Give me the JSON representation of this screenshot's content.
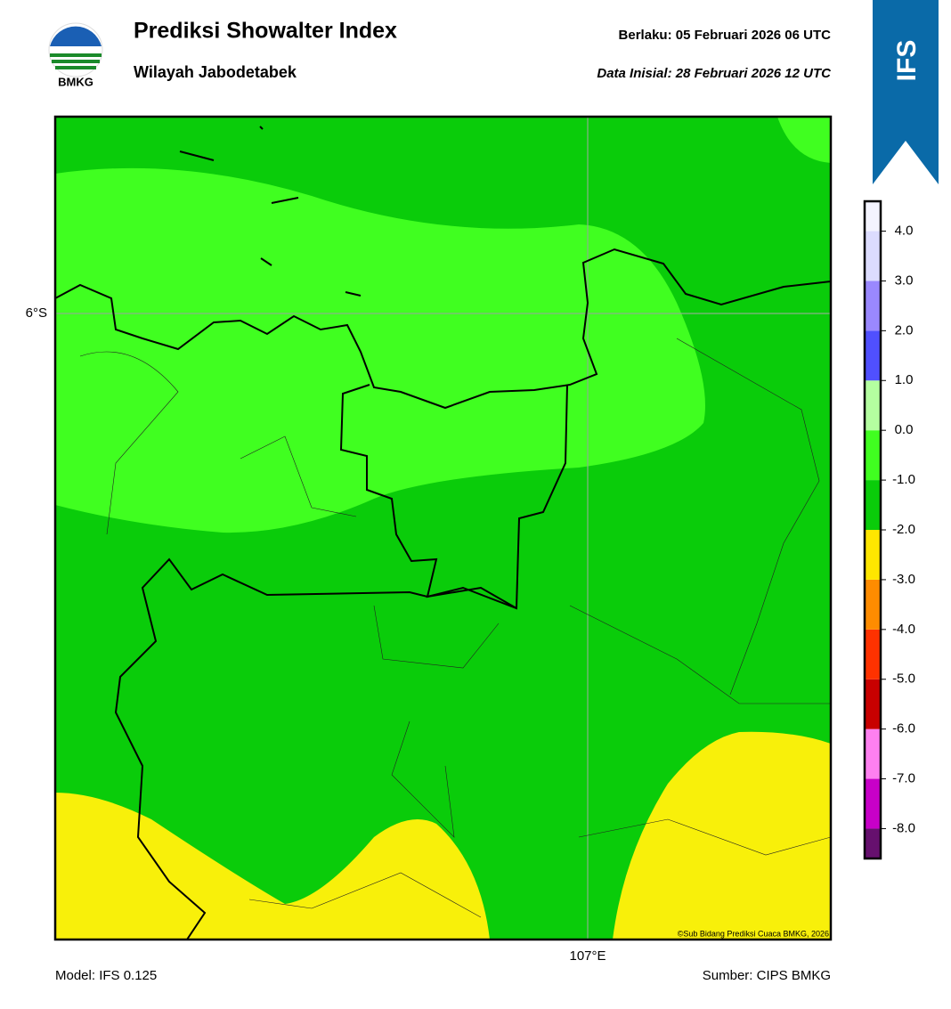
{
  "header": {
    "title": "Prediksi Showalter Index",
    "subtitle": "Wilayah Jabodetabek",
    "logo_text": "BMKG",
    "valid": "Berlaku:  05 Februari 2026 06 UTC",
    "init": "Data Inisial:  28 Februari 2026 12 UTC",
    "badge": "IFS"
  },
  "map": {
    "lat_label": "6°S",
    "lon_label": "107°E",
    "credit": "©Sub Bidang Prediksi Cuaca BMKG, 2026"
  },
  "colorbar": {
    "range": [
      -8.6,
      4.6
    ],
    "ticks": [
      {
        "value": -8,
        "label": "-8.0"
      },
      {
        "value": -7,
        "label": "-7.0"
      },
      {
        "value": -6,
        "label": "-6.0"
      },
      {
        "value": -5,
        "label": "-5.0"
      },
      {
        "value": -4,
        "label": "-4.0"
      },
      {
        "value": -3,
        "label": "-3.0"
      },
      {
        "value": -2,
        "label": "-2.0"
      },
      {
        "value": -1,
        "label": "-1.0"
      },
      {
        "value": 0,
        "label": "0.0"
      },
      {
        "value": 1,
        "label": "1.0"
      },
      {
        "value": 2,
        "label": "2.0"
      },
      {
        "value": 3,
        "label": "3.0"
      },
      {
        "value": 4,
        "label": "4.0"
      }
    ],
    "colors": [
      "#66106e",
      "#c800c8",
      "#ff80f0",
      "#c80000",
      "#ff3200",
      "#ff8c00",
      "#ffe600",
      "#0acc0a",
      "#40ff20",
      "#b4ffa0",
      "#5050ff",
      "#9a88ff",
      "#dcdcff",
      "#f4f4ff"
    ]
  },
  "footer": {
    "model": "Model: IFS 0.125",
    "source": "Sumber: CIPS BMKG"
  }
}
